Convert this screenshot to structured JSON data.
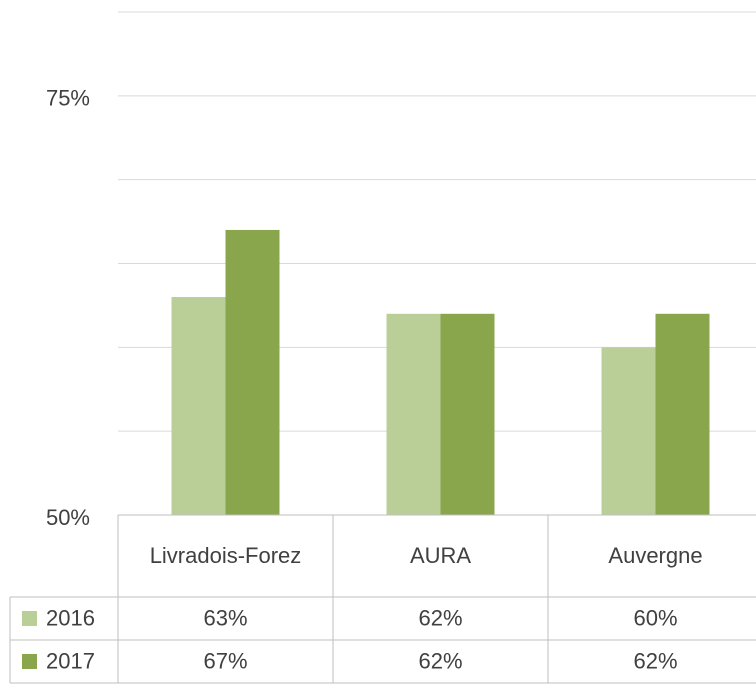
{
  "chart_data": {
    "type": "bar",
    "categories": [
      "Livradois-Forez",
      "AURA",
      "Auvergne"
    ],
    "series": [
      {
        "name": "2016",
        "color": "#b9cf97",
        "values": [
          63,
          62,
          60
        ],
        "value_labels": [
          "63%",
          "62%",
          "60%"
        ]
      },
      {
        "name": "2017",
        "color": "#89a64d",
        "values": [
          67,
          62,
          62
        ],
        "value_labels": [
          "67%",
          "62%",
          "62%"
        ]
      }
    ],
    "ylim": [
      50,
      80
    ],
    "yticks": [
      {
        "value": 50,
        "label": "50%"
      },
      {
        "value": 75,
        "label": "75%"
      }
    ],
    "minor_yticks": [
      55,
      60,
      65,
      70,
      80
    ],
    "grid": true,
    "data_table": true
  }
}
